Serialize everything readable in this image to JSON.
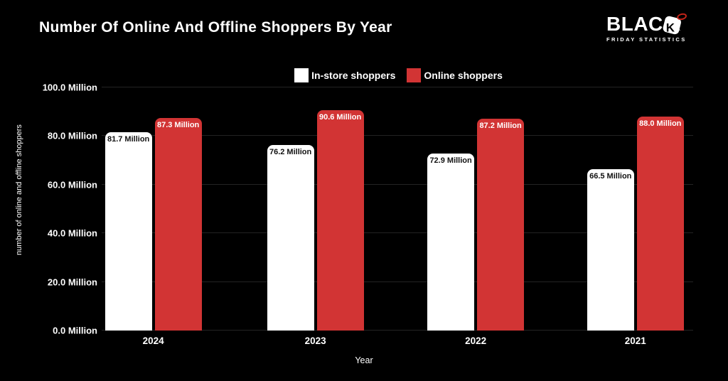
{
  "header": {
    "title": "Number Of Online And Offline Shoppers By Year",
    "brand": {
      "name_part1": "BLAC",
      "name_k": "K",
      "subtitle": "FRIDAY STATISTICS",
      "tag_loop_color": "#c22318",
      "sparkle": "✦"
    }
  },
  "chart_data": {
    "type": "bar",
    "title": "Number Of Online And Offline Shoppers By Year",
    "categories": [
      "2024",
      "2023",
      "2022",
      "2021"
    ],
    "series": [
      {
        "name": "In-store shoppers",
        "color": "#ffffff",
        "label_color": "#111111",
        "values": [
          81.7,
          76.2,
          72.9,
          66.5
        ],
        "labels": [
          "81.7 Million",
          "76.2 Million",
          "72.9 Million",
          "66.5 Million"
        ]
      },
      {
        "name": "Online shoppers",
        "color": "#d23434",
        "label_color": "#ffffff",
        "values": [
          87.3,
          90.6,
          87.2,
          88.0
        ],
        "labels": [
          "87.3 Million",
          "90.6 Million",
          "87.2 Million",
          "88.0 Million"
        ]
      }
    ],
    "xlabel": "Year",
    "ylabel": "number of online and offline shoppers",
    "ylim": [
      0,
      100
    ],
    "yticks": [
      0,
      20,
      40,
      60,
      80,
      100
    ],
    "ytick_labels": [
      "0.0 Million",
      "20.0 Million",
      "40.0 Million",
      "60.0 Million",
      "80.0 Million",
      "100.0 Million"
    ],
    "grid": "horizontal",
    "gridline_color": "#232323",
    "legend_position": "top-center",
    "background": "#000000"
  }
}
